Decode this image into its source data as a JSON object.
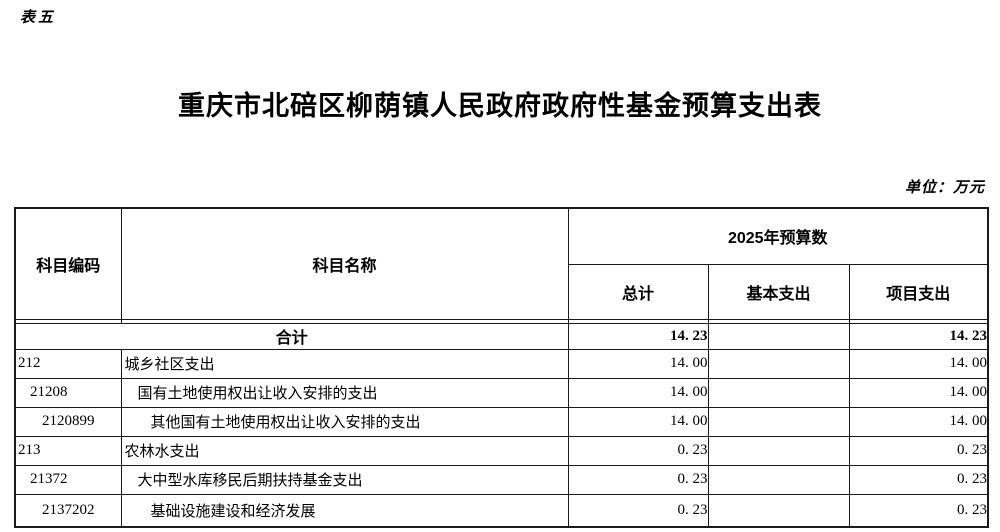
{
  "page": {
    "sheet_label": "表五",
    "title": "重庆市北碚区柳荫镇人民政府政府性基金预算支出表",
    "unit_note": "单位：万元",
    "ink_color": "#000000",
    "background_color": "#ffffff"
  },
  "table": {
    "headers": {
      "code": "科目编码",
      "name": "科目名称",
      "budget_group": "2025年预算数",
      "total": "总计",
      "basic": "基本支出",
      "project": "项目支出"
    },
    "total_row": {
      "label": "合计",
      "total": "14. 23",
      "basic": "",
      "project": "14. 23"
    },
    "rows": [
      {
        "code": "212",
        "name": "城乡社区支出",
        "indent": 0,
        "total": "14. 00",
        "basic": "",
        "project": "14. 00"
      },
      {
        "code": "21208",
        "name": "国有土地使用权出让收入安排的支出",
        "indent": 1,
        "total": "14. 00",
        "basic": "",
        "project": "14. 00"
      },
      {
        "code": "2120899",
        "name": "其他国有土地使用权出让收入安排的支出",
        "indent": 2,
        "total": "14. 00",
        "basic": "",
        "project": "14. 00"
      },
      {
        "code": "213",
        "name": "农林水支出",
        "indent": 0,
        "total": "0. 23",
        "basic": "",
        "project": "0. 23"
      },
      {
        "code": "21372",
        "name": "大中型水库移民后期扶持基金支出",
        "indent": 1,
        "total": "0. 23",
        "basic": "",
        "project": "0. 23"
      },
      {
        "code": "2137202",
        "name": "基础设施建设和经济发展",
        "indent": 2,
        "total": "0. 23",
        "basic": "",
        "project": "0. 23"
      }
    ]
  }
}
